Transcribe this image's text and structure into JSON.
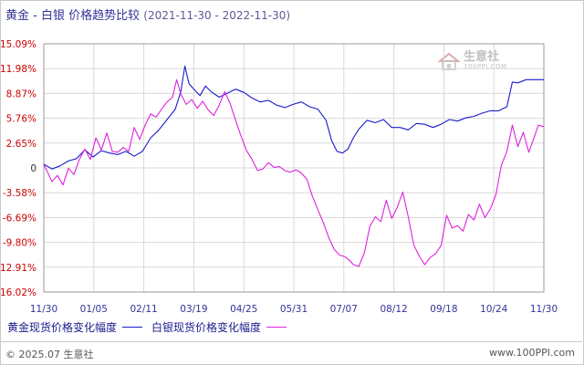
{
  "title": {
    "commodities": "黄金 - 白银",
    "subject": "价格趋势比较",
    "range": "(2021-11-30 - 2022-11-30)"
  },
  "watermark": {
    "name": "生意社",
    "url": "100PPI.COM"
  },
  "footer": {
    "copyright": "© 2025.07 生意社",
    "site": "www.100PPI.com"
  },
  "colors": {
    "gold": "#1a1acc",
    "silver": "#dd22dd",
    "positive_tick": "#cc0000",
    "negative_tick": "#cc0000",
    "zero_tick": "#333333",
    "grid": "#d9d9d9"
  },
  "chart_data": {
    "type": "line",
    "title": "黄金 - 白银 价格趋势比较",
    "x_ticks": [
      "11/30",
      "01/05",
      "02/11",
      "03/19",
      "04/25",
      "05/31",
      "07/07",
      "08/12",
      "09/18",
      "10/24",
      "11/30"
    ],
    "y_ticks": [
      "15.09%",
      "11.98%",
      "8.87%",
      "5.76%",
      "2.65%",
      "0",
      "-3.58%",
      "-6.69%",
      "-9.80%",
      "-12.91%",
      "-16.02%"
    ],
    "ylim": [
      -16.02,
      15.09
    ],
    "grid": true,
    "legend_position": "bottom-left",
    "series": [
      {
        "name": "黄金现货价格变化幅度",
        "color": "#1a1acc",
        "points": [
          [
            0,
            0.0
          ],
          [
            6,
            -0.6
          ],
          [
            12,
            -0.2
          ],
          [
            18,
            0.4
          ],
          [
            24,
            0.7
          ],
          [
            30,
            1.8
          ],
          [
            36,
            0.9
          ],
          [
            42,
            1.7
          ],
          [
            48,
            1.4
          ],
          [
            54,
            1.2
          ],
          [
            60,
            1.6
          ],
          [
            66,
            1.0
          ],
          [
            72,
            1.6
          ],
          [
            78,
            3.3
          ],
          [
            84,
            4.3
          ],
          [
            90,
            5.6
          ],
          [
            96,
            6.9
          ],
          [
            100,
            9.1
          ],
          [
            103,
            12.3
          ],
          [
            106,
            10.1
          ],
          [
            110,
            9.3
          ],
          [
            114,
            8.6
          ],
          [
            118,
            9.8
          ],
          [
            122,
            9.1
          ],
          [
            128,
            8.4
          ],
          [
            134,
            8.9
          ],
          [
            140,
            9.4
          ],
          [
            146,
            9.0
          ],
          [
            152,
            8.3
          ],
          [
            158,
            7.8
          ],
          [
            164,
            8.0
          ],
          [
            170,
            7.4
          ],
          [
            176,
            7.1
          ],
          [
            182,
            7.5
          ],
          [
            188,
            7.8
          ],
          [
            194,
            7.2
          ],
          [
            200,
            6.9
          ],
          [
            206,
            5.5
          ],
          [
            210,
            3.0
          ],
          [
            214,
            1.6
          ],
          [
            218,
            1.4
          ],
          [
            222,
            1.9
          ],
          [
            226,
            3.3
          ],
          [
            230,
            4.4
          ],
          [
            236,
            5.5
          ],
          [
            242,
            5.2
          ],
          [
            248,
            5.6
          ],
          [
            254,
            4.6
          ],
          [
            260,
            4.6
          ],
          [
            266,
            4.3
          ],
          [
            272,
            5.1
          ],
          [
            278,
            5.0
          ],
          [
            284,
            4.6
          ],
          [
            290,
            5.0
          ],
          [
            296,
            5.6
          ],
          [
            302,
            5.4
          ],
          [
            308,
            5.8
          ],
          [
            314,
            6.0
          ],
          [
            320,
            6.4
          ],
          [
            326,
            6.7
          ],
          [
            332,
            6.7
          ],
          [
            338,
            7.2
          ],
          [
            342,
            10.3
          ],
          [
            346,
            10.2
          ],
          [
            352,
            10.6
          ],
          [
            358,
            10.6
          ],
          [
            365,
            10.6
          ]
        ]
      },
      {
        "name": "白银现货价格变化幅度",
        "color": "#dd22dd",
        "points": [
          [
            0,
            0.0
          ],
          [
            6,
            -2.2
          ],
          [
            10,
            -1.4
          ],
          [
            14,
            -2.6
          ],
          [
            18,
            -0.5
          ],
          [
            22,
            -1.3
          ],
          [
            26,
            0.6
          ],
          [
            30,
            1.9
          ],
          [
            34,
            0.6
          ],
          [
            38,
            3.3
          ],
          [
            42,
            1.8
          ],
          [
            46,
            3.9
          ],
          [
            50,
            1.6
          ],
          [
            54,
            1.5
          ],
          [
            58,
            2.1
          ],
          [
            62,
            1.6
          ],
          [
            66,
            4.6
          ],
          [
            70,
            3.1
          ],
          [
            74,
            4.9
          ],
          [
            78,
            6.3
          ],
          [
            82,
            5.9
          ],
          [
            86,
            6.9
          ],
          [
            90,
            7.8
          ],
          [
            94,
            8.4
          ],
          [
            97,
            10.6
          ],
          [
            100,
            8.8
          ],
          [
            104,
            7.5
          ],
          [
            108,
            8.1
          ],
          [
            112,
            7.0
          ],
          [
            116,
            7.9
          ],
          [
            120,
            6.8
          ],
          [
            124,
            6.1
          ],
          [
            128,
            7.4
          ],
          [
            132,
            9.1
          ],
          [
            136,
            7.6
          ],
          [
            140,
            5.5
          ],
          [
            144,
            3.5
          ],
          [
            148,
            1.7
          ],
          [
            152,
            0.6
          ],
          [
            156,
            -0.8
          ],
          [
            160,
            -0.6
          ],
          [
            164,
            0.2
          ],
          [
            168,
            -0.4
          ],
          [
            172,
            -0.3
          ],
          [
            176,
            -0.8
          ],
          [
            180,
            -1.0
          ],
          [
            184,
            -0.7
          ],
          [
            188,
            -1.1
          ],
          [
            192,
            -1.9
          ],
          [
            196,
            -4.0
          ],
          [
            200,
            -5.7
          ],
          [
            204,
            -7.3
          ],
          [
            208,
            -9.2
          ],
          [
            212,
            -10.7
          ],
          [
            216,
            -11.4
          ],
          [
            220,
            -11.6
          ],
          [
            224,
            -12.2
          ],
          [
            226,
            -12.6
          ],
          [
            230,
            -12.8
          ],
          [
            234,
            -11.1
          ],
          [
            238,
            -7.8
          ],
          [
            242,
            -6.6
          ],
          [
            246,
            -7.2
          ],
          [
            250,
            -4.5
          ],
          [
            254,
            -6.8
          ],
          [
            258,
            -5.4
          ],
          [
            262,
            -3.5
          ],
          [
            266,
            -6.6
          ],
          [
            270,
            -10.1
          ],
          [
            274,
            -11.5
          ],
          [
            278,
            -12.6
          ],
          [
            282,
            -11.7
          ],
          [
            286,
            -11.2
          ],
          [
            290,
            -10.2
          ],
          [
            294,
            -6.4
          ],
          [
            298,
            -8.0
          ],
          [
            302,
            -7.7
          ],
          [
            306,
            -8.4
          ],
          [
            310,
            -6.3
          ],
          [
            314,
            -7.0
          ],
          [
            318,
            -5.0
          ],
          [
            322,
            -6.7
          ],
          [
            326,
            -5.6
          ],
          [
            330,
            -3.8
          ],
          [
            334,
            -0.1
          ],
          [
            338,
            1.6
          ],
          [
            342,
            4.9
          ],
          [
            346,
            2.2
          ],
          [
            350,
            4.0
          ],
          [
            354,
            1.5
          ],
          [
            358,
            3.4
          ],
          [
            361,
            4.9
          ],
          [
            365,
            4.7
          ]
        ]
      }
    ]
  }
}
